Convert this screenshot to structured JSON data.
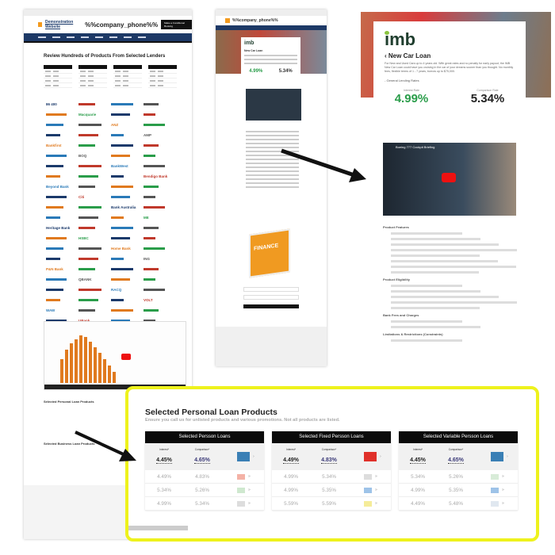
{
  "left_page": {
    "site_name": "Demonstration Website",
    "phone": "%%company_phone%%",
    "header_button": "Make a Conditional Booking",
    "heading": "Review Hundreds of Products From Selected Lenders",
    "lender_logos": [
      "86 400",
      "Macquarie",
      "ANZ",
      "AMP",
      "Bankfirst",
      "BOQ",
      "BankWest",
      "Bendigo Bank",
      "Beyond Bank",
      "Citi",
      "Bank Australia",
      "ME",
      "Heritage Bank",
      "HSBC",
      "Home Bank",
      "ING",
      "P&N Bank",
      "QBANK",
      "RACQ",
      "VOLT",
      "WAW",
      "UBank",
      "Westpac",
      "Suncorp"
    ],
    "bottom_heading": "Selected Personal Loan Products",
    "business_heading": "Selected Business Loan Products"
  },
  "middle_page": {
    "brand": "imb",
    "title": "New Car Loan",
    "interest_rate": "4.99%",
    "comparison_rate": "5.34%",
    "book_title": "FINANCE"
  },
  "detail": {
    "brand": "imb",
    "title": "New Car Loan",
    "intro": "For New and Used Cars up to 4 years old. With great rates and no penalty for early payout, the IMB New Car Loan could have you cruising in the car of your dreams sooner than you thought. No monthly fees, flexible terms of 1 - 7 years, borrow up to $75,000.",
    "section_rates": "General Lending Rates",
    "interest_label": "Interest Rate",
    "interest_rate": "4.99%",
    "comparison_label": "Comparison Rate",
    "comparison_rate": "5.34%",
    "video_title": "Boeing 777 Cockpit Briefing",
    "sections": [
      "Product Features",
      "Product Eligibility",
      "Bank Fees and Charges",
      "Limitations & Restrictions (Constraints)"
    ]
  },
  "highlight": {
    "title": "Selected Personal Loan Products",
    "subtitle": "Ensure you call us for unlisted products and various promotions. Not all products are listed.",
    "interest_label": "Interest*",
    "comparison_label": "Comparison*",
    "tables": [
      {
        "header": "Selected Persson Loans",
        "featured": {
          "interest": "4.45%",
          "comparison": "4.65%",
          "logo": "#3a7fb5"
        },
        "rows": [
          {
            "interest": "4.49%",
            "comparison": "4.83%",
            "logo": "#f4b2a6"
          },
          {
            "interest": "5.34%",
            "comparison": "5.26%",
            "logo": "#cfe8cf"
          },
          {
            "interest": "4.99%",
            "comparison": "5.34%",
            "logo": "#ddd"
          }
        ]
      },
      {
        "header": "Selected Fixed Persson Loans",
        "featured": {
          "interest": "4.49%",
          "comparison": "4.83%",
          "logo": "#e0302a"
        },
        "rows": [
          {
            "interest": "4.99%",
            "comparison": "5.34%",
            "logo": "#ddd"
          },
          {
            "interest": "4.99%",
            "comparison": "5.35%",
            "logo": "#9ec3e8"
          },
          {
            "interest": "5.59%",
            "comparison": "5.59%",
            "logo": "#f5ec9a"
          }
        ]
      },
      {
        "header": "Selected Variable Persson Loans",
        "featured": {
          "interest": "4.45%",
          "comparison": "4.65%",
          "logo": "#3a7fb5"
        },
        "rows": [
          {
            "interest": "5.34%",
            "comparison": "5.26%",
            "logo": "#d8ecd8"
          },
          {
            "interest": "4.99%",
            "comparison": "5.35%",
            "logo": "#9ec3e8"
          },
          {
            "interest": "4.49%",
            "comparison": "5.48%",
            "logo": "#e0e8f0"
          }
        ]
      }
    ]
  },
  "colors": {
    "highlight_border": "#eef21c",
    "nav": "#1d3966",
    "green_rate": "#2a9d4a"
  }
}
